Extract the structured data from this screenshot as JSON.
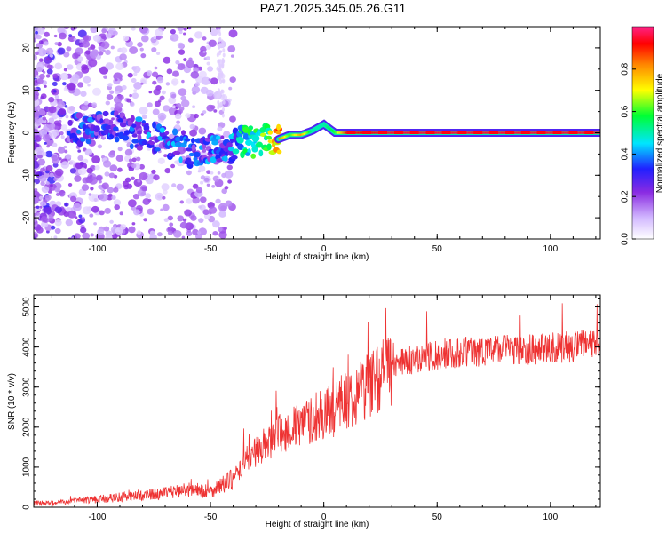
{
  "title": "PAZ1.2025.345.05.26.G11",
  "chart_data": [
    {
      "type": "heatmap",
      "xlabel": "Height of straight line (km)",
      "ylabel": "Frequency (Hz)",
      "xlim": [
        -128,
        122
      ],
      "ylim": [
        -25,
        25
      ],
      "xticks": [
        -100,
        -50,
        0,
        50,
        100
      ],
      "xtick_labels": [
        "-100",
        "-50",
        "0",
        "50",
        "100"
      ],
      "yticks": [
        -20,
        -10,
        0,
        10,
        20
      ],
      "ytick_labels": [
        "-20",
        "-10",
        "0",
        "10",
        "20"
      ],
      "colorbar": {
        "label": "Normalized spectral amplitude",
        "range": [
          0,
          1
        ],
        "ticks": [
          0,
          0.2,
          0.4,
          0.6,
          0.8
        ],
        "tick_labels": [
          "0.0",
          "0.2",
          "0.4",
          "0.6",
          "0.8"
        ]
      },
      "ridge": [
        {
          "x": -105,
          "f": 1.0,
          "a": 0.3
        },
        {
          "x": -95,
          "f": 1.5,
          "a": 0.3
        },
        {
          "x": -85,
          "f": 0.0,
          "a": 0.3
        },
        {
          "x": -75,
          "f": -1.0,
          "a": 0.35
        },
        {
          "x": -65,
          "f": -2.5,
          "a": 0.35
        },
        {
          "x": -58,
          "f": -5.0,
          "a": 0.3
        },
        {
          "x": -50,
          "f": -3.0,
          "a": 0.35
        },
        {
          "x": -42,
          "f": -3.5,
          "a": 0.35
        },
        {
          "x": -35,
          "f": -2.0,
          "a": 0.5
        },
        {
          "x": -30,
          "f": -2.0,
          "a": 0.55
        },
        {
          "x": -25,
          "f": -1.0,
          "a": 0.6
        },
        {
          "x": -20,
          "f": -1.5,
          "a": 0.85
        },
        {
          "x": -15,
          "f": -0.5,
          "a": 0.6
        },
        {
          "x": -10,
          "f": -0.5,
          "a": 0.8
        },
        {
          "x": -5,
          "f": 0.5,
          "a": 0.5
        },
        {
          "x": 0,
          "f": 2.0,
          "a": 0.5
        },
        {
          "x": 5,
          "f": 0.0,
          "a": 0.6
        },
        {
          "x": 10,
          "f": 0.0,
          "a": 0.9
        },
        {
          "x": 30,
          "f": 0.0,
          "a": 0.95
        },
        {
          "x": 50,
          "f": 0.0,
          "a": 0.95
        },
        {
          "x": 80,
          "f": 0.0,
          "a": 0.95
        },
        {
          "x": 100,
          "f": 0.0,
          "a": 0.95
        },
        {
          "x": 122,
          "f": 0.0,
          "a": 0.95
        }
      ]
    },
    {
      "type": "line",
      "xlabel": "Height of straight line (km)",
      "ylabel": "SNR (10 * v/v)",
      "xlim": [
        -128,
        122
      ],
      "ylim": [
        0,
        5300
      ],
      "xticks": [
        -100,
        -50,
        0,
        50,
        100
      ],
      "xtick_labels": [
        "-100",
        "-50",
        "0",
        "50",
        "100"
      ],
      "yticks": [
        0,
        1000,
        2000,
        3000,
        4000,
        5000
      ],
      "ytick_labels": [
        "0",
        "1000",
        "2000",
        "3000",
        "4000",
        "5000"
      ],
      "series": [
        {
          "name": "SNR",
          "color": "#ee3333",
          "x": [
            -128,
            -120,
            -110,
            -100,
            -90,
            -80,
            -70,
            -60,
            -50,
            -40,
            -35,
            -30,
            -25,
            -20,
            -15,
            -10,
            -5,
            0,
            5,
            10,
            15,
            20,
            25,
            30,
            35,
            40,
            45,
            50,
            55,
            60,
            65,
            70,
            75,
            80,
            85,
            90,
            95,
            100,
            105,
            110,
            115,
            122
          ],
          "y": [
            100,
            100,
            150,
            200,
            250,
            300,
            350,
            450,
            400,
            700,
            1100,
            1400,
            1600,
            1800,
            1950,
            2050,
            2200,
            2300,
            2450,
            2650,
            2900,
            3100,
            3300,
            3450,
            3600,
            3700,
            3750,
            3800,
            3850,
            3850,
            3900,
            3900,
            3900,
            3950,
            3950,
            3950,
            3950,
            4000,
            4000,
            4000,
            4050,
            4050
          ]
        }
      ]
    }
  ]
}
